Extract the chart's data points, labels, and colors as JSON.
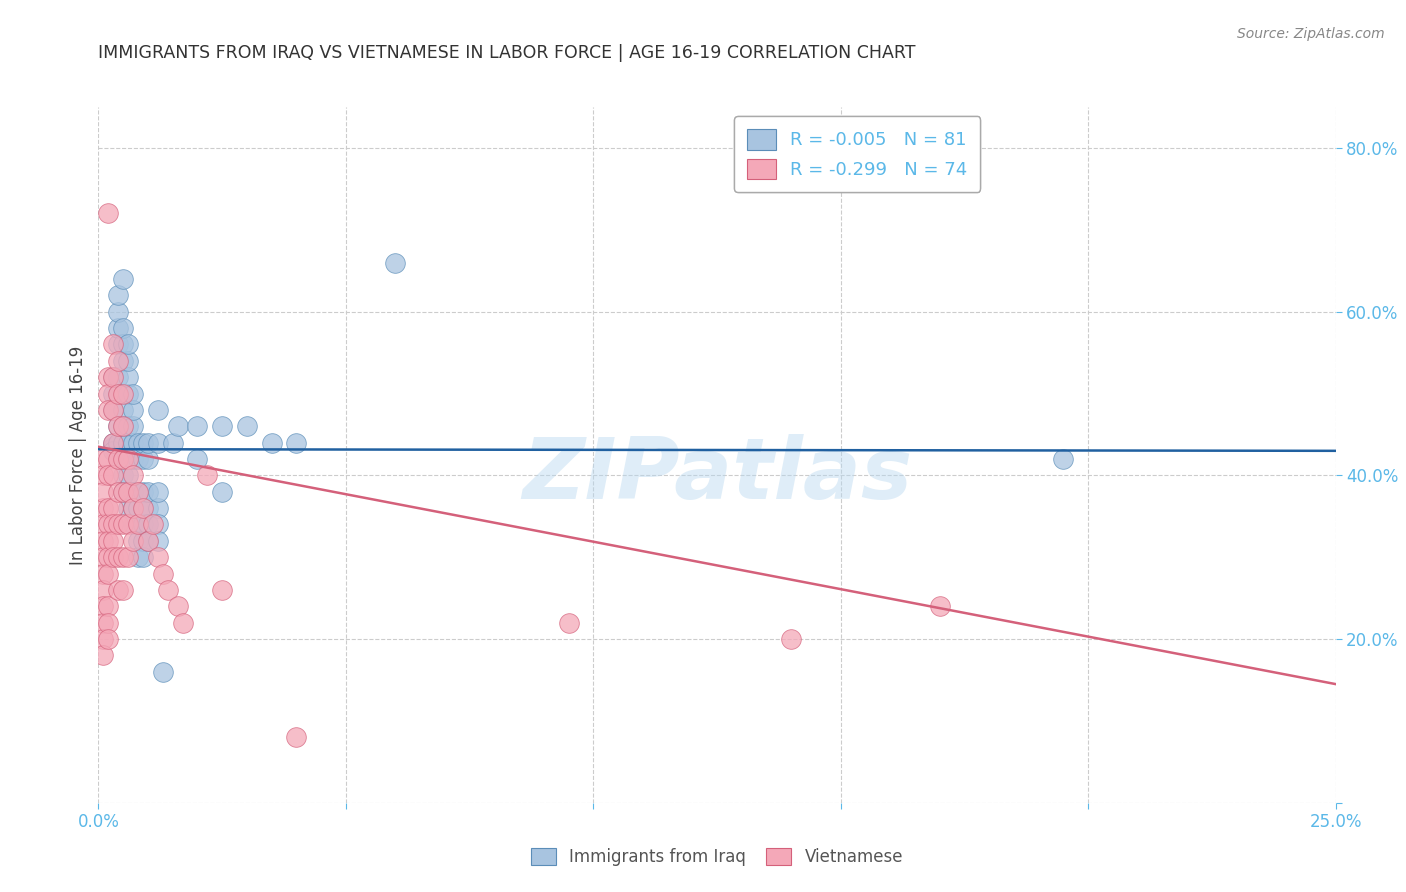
{
  "title": "IMMIGRANTS FROM IRAQ VS VIETNAMESE IN LABOR FORCE | AGE 16-19 CORRELATION CHART",
  "source": "Source: ZipAtlas.com",
  "ylabel": "In Labor Force | Age 16-19",
  "xlim": [
    0.0,
    0.25
  ],
  "ylim": [
    0.0,
    0.85
  ],
  "x_ticks": [
    0.0,
    0.05,
    0.1,
    0.15,
    0.2,
    0.25
  ],
  "y_ticks": [
    0.0,
    0.2,
    0.4,
    0.6,
    0.8
  ],
  "legend_iraq_label": "R = -0.005   N = 81",
  "legend_viet_label": "R = -0.299   N = 74",
  "iraq_color": "#a8c4e0",
  "viet_color": "#f4a8b8",
  "iraq_edge_color": "#5b8db8",
  "viet_edge_color": "#d4607a",
  "iraq_line_color": "#2060a0",
  "viet_line_color": "#d4607a",
  "watermark": "ZIPatlas",
  "background_color": "#ffffff",
  "grid_color": "#cccccc",
  "axis_tick_color": "#5bb8e8",
  "title_color": "#333333",
  "iraq_scatter": [
    [
      0.003,
      0.435
    ],
    [
      0.003,
      0.44
    ],
    [
      0.003,
      0.43
    ],
    [
      0.003,
      0.5
    ],
    [
      0.003,
      0.52
    ],
    [
      0.003,
      0.48
    ],
    [
      0.004,
      0.42
    ],
    [
      0.004,
      0.44
    ],
    [
      0.004,
      0.46
    ],
    [
      0.004,
      0.56
    ],
    [
      0.004,
      0.58
    ],
    [
      0.004,
      0.6
    ],
    [
      0.004,
      0.62
    ],
    [
      0.004,
      0.5
    ],
    [
      0.004,
      0.52
    ],
    [
      0.005,
      0.42
    ],
    [
      0.005,
      0.44
    ],
    [
      0.005,
      0.46
    ],
    [
      0.005,
      0.48
    ],
    [
      0.005,
      0.54
    ],
    [
      0.005,
      0.56
    ],
    [
      0.005,
      0.58
    ],
    [
      0.005,
      0.4
    ],
    [
      0.005,
      0.38
    ],
    [
      0.005,
      0.64
    ],
    [
      0.006,
      0.42
    ],
    [
      0.006,
      0.44
    ],
    [
      0.006,
      0.46
    ],
    [
      0.006,
      0.5
    ],
    [
      0.006,
      0.52
    ],
    [
      0.006,
      0.54
    ],
    [
      0.006,
      0.56
    ],
    [
      0.006,
      0.4
    ],
    [
      0.006,
      0.38
    ],
    [
      0.006,
      0.36
    ],
    [
      0.007,
      0.42
    ],
    [
      0.007,
      0.44
    ],
    [
      0.007,
      0.46
    ],
    [
      0.007,
      0.36
    ],
    [
      0.007,
      0.34
    ],
    [
      0.007,
      0.38
    ],
    [
      0.007,
      0.48
    ],
    [
      0.007,
      0.5
    ],
    [
      0.008,
      0.42
    ],
    [
      0.008,
      0.44
    ],
    [
      0.008,
      0.36
    ],
    [
      0.008,
      0.34
    ],
    [
      0.008,
      0.38
    ],
    [
      0.008,
      0.32
    ],
    [
      0.008,
      0.3
    ],
    [
      0.009,
      0.42
    ],
    [
      0.009,
      0.44
    ],
    [
      0.009,
      0.36
    ],
    [
      0.009,
      0.34
    ],
    [
      0.009,
      0.38
    ],
    [
      0.009,
      0.32
    ],
    [
      0.009,
      0.3
    ],
    [
      0.01,
      0.42
    ],
    [
      0.01,
      0.44
    ],
    [
      0.01,
      0.36
    ],
    [
      0.01,
      0.34
    ],
    [
      0.01,
      0.38
    ],
    [
      0.01,
      0.32
    ],
    [
      0.012,
      0.48
    ],
    [
      0.012,
      0.44
    ],
    [
      0.012,
      0.36
    ],
    [
      0.012,
      0.34
    ],
    [
      0.012,
      0.38
    ],
    [
      0.012,
      0.32
    ],
    [
      0.013,
      0.16
    ],
    [
      0.015,
      0.44
    ],
    [
      0.016,
      0.46
    ],
    [
      0.02,
      0.46
    ],
    [
      0.02,
      0.42
    ],
    [
      0.025,
      0.46
    ],
    [
      0.025,
      0.38
    ],
    [
      0.03,
      0.46
    ],
    [
      0.035,
      0.44
    ],
    [
      0.04,
      0.44
    ],
    [
      0.06,
      0.66
    ],
    [
      0.195,
      0.42
    ]
  ],
  "viet_scatter": [
    [
      0.001,
      0.42
    ],
    [
      0.001,
      0.4
    ],
    [
      0.001,
      0.36
    ],
    [
      0.001,
      0.38
    ],
    [
      0.001,
      0.34
    ],
    [
      0.001,
      0.32
    ],
    [
      0.001,
      0.3
    ],
    [
      0.001,
      0.28
    ],
    [
      0.001,
      0.26
    ],
    [
      0.001,
      0.24
    ],
    [
      0.001,
      0.22
    ],
    [
      0.001,
      0.2
    ],
    [
      0.001,
      0.18
    ],
    [
      0.002,
      0.72
    ],
    [
      0.002,
      0.42
    ],
    [
      0.002,
      0.4
    ],
    [
      0.002,
      0.52
    ],
    [
      0.002,
      0.5
    ],
    [
      0.002,
      0.48
    ],
    [
      0.002,
      0.36
    ],
    [
      0.002,
      0.34
    ],
    [
      0.002,
      0.32
    ],
    [
      0.002,
      0.3
    ],
    [
      0.002,
      0.28
    ],
    [
      0.002,
      0.24
    ],
    [
      0.002,
      0.22
    ],
    [
      0.002,
      0.2
    ],
    [
      0.003,
      0.56
    ],
    [
      0.003,
      0.52
    ],
    [
      0.003,
      0.48
    ],
    [
      0.003,
      0.44
    ],
    [
      0.003,
      0.4
    ],
    [
      0.003,
      0.36
    ],
    [
      0.003,
      0.34
    ],
    [
      0.003,
      0.32
    ],
    [
      0.003,
      0.3
    ],
    [
      0.004,
      0.54
    ],
    [
      0.004,
      0.5
    ],
    [
      0.004,
      0.46
    ],
    [
      0.004,
      0.42
    ],
    [
      0.004,
      0.38
    ],
    [
      0.004,
      0.34
    ],
    [
      0.004,
      0.3
    ],
    [
      0.004,
      0.26
    ],
    [
      0.005,
      0.5
    ],
    [
      0.005,
      0.46
    ],
    [
      0.005,
      0.42
    ],
    [
      0.005,
      0.38
    ],
    [
      0.005,
      0.34
    ],
    [
      0.005,
      0.3
    ],
    [
      0.005,
      0.26
    ],
    [
      0.006,
      0.42
    ],
    [
      0.006,
      0.38
    ],
    [
      0.006,
      0.34
    ],
    [
      0.006,
      0.3
    ],
    [
      0.007,
      0.4
    ],
    [
      0.007,
      0.36
    ],
    [
      0.007,
      0.32
    ],
    [
      0.008,
      0.38
    ],
    [
      0.008,
      0.34
    ],
    [
      0.009,
      0.36
    ],
    [
      0.01,
      0.32
    ],
    [
      0.011,
      0.34
    ],
    [
      0.012,
      0.3
    ],
    [
      0.013,
      0.28
    ],
    [
      0.014,
      0.26
    ],
    [
      0.016,
      0.24
    ],
    [
      0.017,
      0.22
    ],
    [
      0.022,
      0.4
    ],
    [
      0.025,
      0.26
    ],
    [
      0.04,
      0.08
    ],
    [
      0.095,
      0.22
    ],
    [
      0.14,
      0.2
    ],
    [
      0.17,
      0.24
    ]
  ],
  "iraq_trend_x": [
    0.0,
    0.25
  ],
  "iraq_trend_y": [
    0.432,
    0.43
  ],
  "viet_trend_x": [
    0.0,
    0.25
  ],
  "viet_trend_y": [
    0.435,
    0.145
  ]
}
